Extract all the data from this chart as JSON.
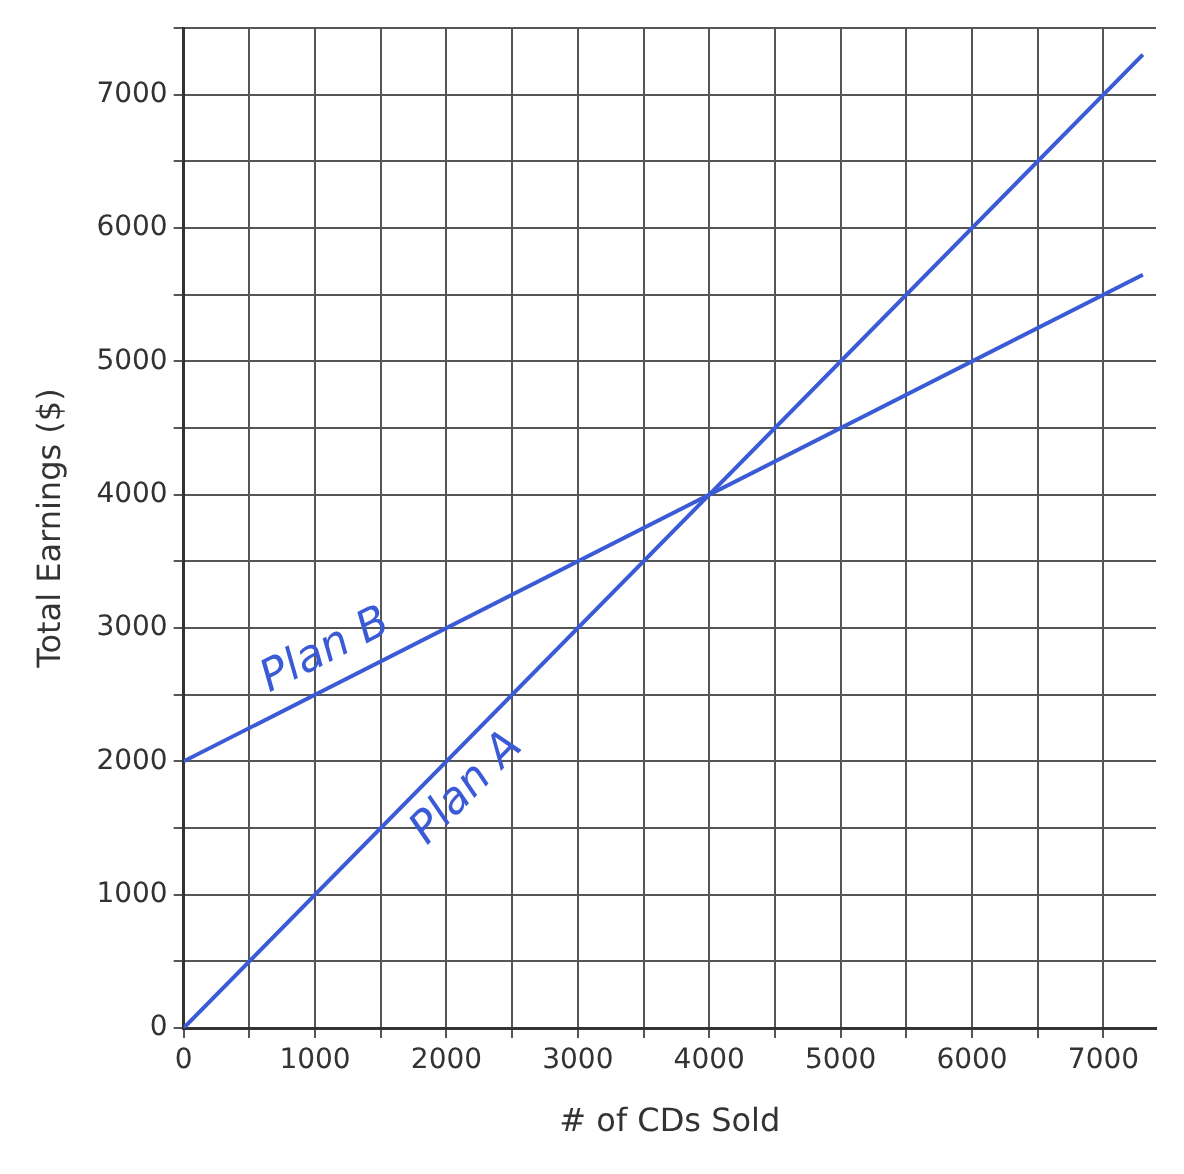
{
  "chart_data": {
    "type": "line",
    "xlabel": "# of CDs Sold",
    "ylabel": "Total Earnings ($)",
    "x": [
      0,
      7300
    ],
    "series": [
      {
        "name": "Plan B",
        "color": "#3b5bd6",
        "values": [
          2000,
          5650
        ]
      },
      {
        "name": "Plan A",
        "color": "#3b5bd6",
        "values": [
          0,
          7300
        ]
      }
    ],
    "xlim": [
      0,
      7400
    ],
    "ylim": [
      0,
      7500
    ],
    "xticks": [
      0,
      {
        "value": 500,
        "label": null
      },
      1000,
      {
        "value": 1500,
        "label": null
      },
      2000,
      {
        "value": 2500,
        "label": null
      },
      3000,
      {
        "value": 3500,
        "label": null
      },
      4000,
      {
        "value": 4500,
        "label": null
      },
      5000,
      {
        "value": 5500,
        "label": null
      },
      6000,
      {
        "value": 6500,
        "label": null
      },
      7000
    ],
    "yticks": [
      0,
      {
        "value": 500,
        "label": null
      },
      1000,
      {
        "value": 1500,
        "label": null
      },
      2000,
      {
        "value": 2500,
        "label": null
      },
      3000,
      {
        "value": 3500,
        "label": null
      },
      4000,
      {
        "value": 4500,
        "label": null
      },
      5000,
      {
        "value": 5500,
        "label": null
      },
      6000,
      {
        "value": 6500,
        "label": null
      },
      7000,
      {
        "value": 7500,
        "label": null
      }
    ],
    "grid": true,
    "legend": false,
    "marker": "none",
    "line_style": "solid"
  }
}
